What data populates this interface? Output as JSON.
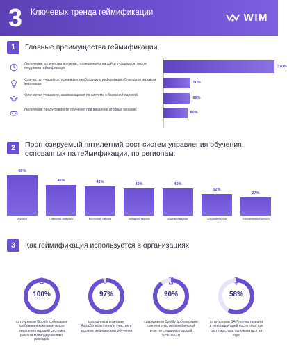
{
  "header": {
    "number": "3",
    "title": "Ключевых тренда геймификации",
    "logo_text": "WIM"
  },
  "section1": {
    "number": "1",
    "title": "Главные преимущества геймификации",
    "rows": [
      {
        "icon": "clock-icon",
        "text": "Увеличение количества времени, проведенного на сайте учащимися, после внедрения геймификации",
        "value_label": "370%"
      },
      {
        "icon": "lightbulb-icon",
        "text": "Количество учащихся, усвоивших необходимую информацию благодаря игровым механикам",
        "value_label": "90%"
      },
      {
        "icon": "graduation-cap-icon",
        "text": "Количество учащихся, занимающихся по системе с балльной оценкой",
        "value_label": "89%"
      },
      {
        "icon": "gamepad-icon",
        "text": "Увеличение продуктивности обучения при введении игровых механик",
        "value_label": "80%"
      }
    ]
  },
  "section2": {
    "number": "2",
    "title": "Прогнозируемый пятилетний рост систем управления обучения, основанных на геймификации, по регионам:"
  },
  "section3": {
    "number": "3",
    "title": "Как геймификация используется в организациях",
    "items": [
      {
        "icon": "google-icon",
        "value_label": "100%",
        "text": "сотрудников Google соблюдают требования компании после внедрения игровой системы расчета командировочных расходов"
      },
      {
        "icon": "pill-icon",
        "value_label": "97%",
        "text": "сотрудников компании AstraZeneca приняли участие в игровом медицинском обучении"
      },
      {
        "icon": "phone-icon",
        "value_label": "90%",
        "text": "сотрудников Spotify добровольно приняли участие в мобильной игре по созданию годовой отчетности"
      },
      {
        "icon": "lightbulb-icon",
        "value_label": "58%",
        "text": "сотрудников SAP поучаствовали в генерации идей после того, как система стала основываться на игре"
      }
    ]
  },
  "colors": {
    "accent": "#6a4fcf",
    "accent_light": "#8a72e6",
    "ring_track": "#e7e2f6"
  },
  "chart_data": [
    {
      "type": "bar",
      "orientation": "horizontal",
      "title": "Главные преимущества геймификации",
      "categories": [
        "Увеличение количества времени, проведенного на сайте учащимися, после внедрения геймификации",
        "Количество учащихся, усвоивших необходимую информацию благодаря игровым механикам",
        "Количество учащихся, занимающихся по системе с балльной оценкой",
        "Увеличение продуктивности обучения при введении игровых механик"
      ],
      "values": [
        370,
        90,
        89,
        80
      ]
    },
    {
      "type": "bar",
      "title": "Прогнозируемый пятилетний рост систем управления обучения, основанных на геймификации, по регионам:",
      "categories": [
        "Африка",
        "Северная Америка",
        "Восточная Европа",
        "Западная Европа",
        "Южная Америка",
        "Средний Восток",
        "Тихоокеанский регион"
      ],
      "values": [
        60,
        46,
        43,
        40,
        40,
        32,
        27
      ],
      "value_labels": [
        "60%",
        "46%",
        "43%",
        "40%",
        "40%",
        "32%",
        "27%"
      ]
    },
    {
      "type": "pie",
      "title": "Как геймификация используется в организациях",
      "categories": [
        "Google",
        "AstraZeneca",
        "Spotify",
        "SAP"
      ],
      "values": [
        100,
        97,
        90,
        58
      ]
    }
  ]
}
